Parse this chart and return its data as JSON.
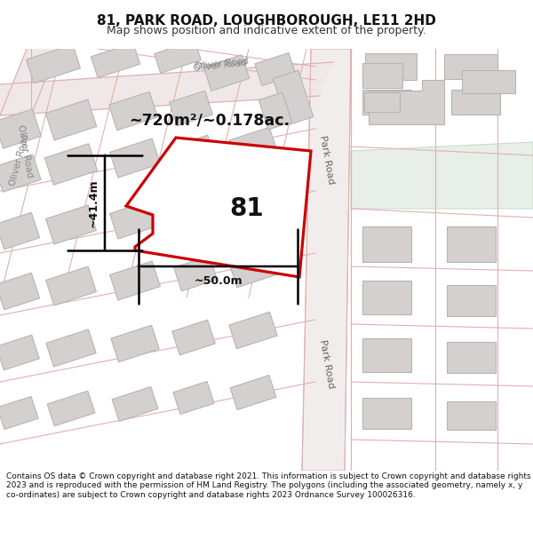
{
  "title": "81, PARK ROAD, LOUGHBOROUGH, LE11 2HD",
  "subtitle": "Map shows position and indicative extent of the property.",
  "footer": "Contains OS data © Crown copyright and database right 2021. This information is subject to Crown copyright and database rights 2023 and is reproduced with the permission of HM Land Registry. The polygons (including the associated geometry, namely x, y co-ordinates) are subject to Crown copyright and database rights 2023 Ordnance Survey 100026316.",
  "bg_color": "#ffffff",
  "map_bg": "#f8f4f4",
  "highlight_color": "#cc0000",
  "building_fill": "#d4d0d0",
  "building_stroke": "#b8b4b4",
  "road_line": "#e0b0b0",
  "road_fill": "#f0e8e8",
  "green_fill": "#e8efe8",
  "green_stroke": "#c8ddc8",
  "area_text": "~720m²/~0.178ac.",
  "label_81": "81",
  "dim_width": "~50.0m",
  "dim_height": "~41.4m",
  "title_fontsize": 11,
  "subtitle_fontsize": 9,
  "footer_fontsize": 6.5,
  "park_road_label": "Park Road",
  "oliver_road_label": "Oliver Road"
}
